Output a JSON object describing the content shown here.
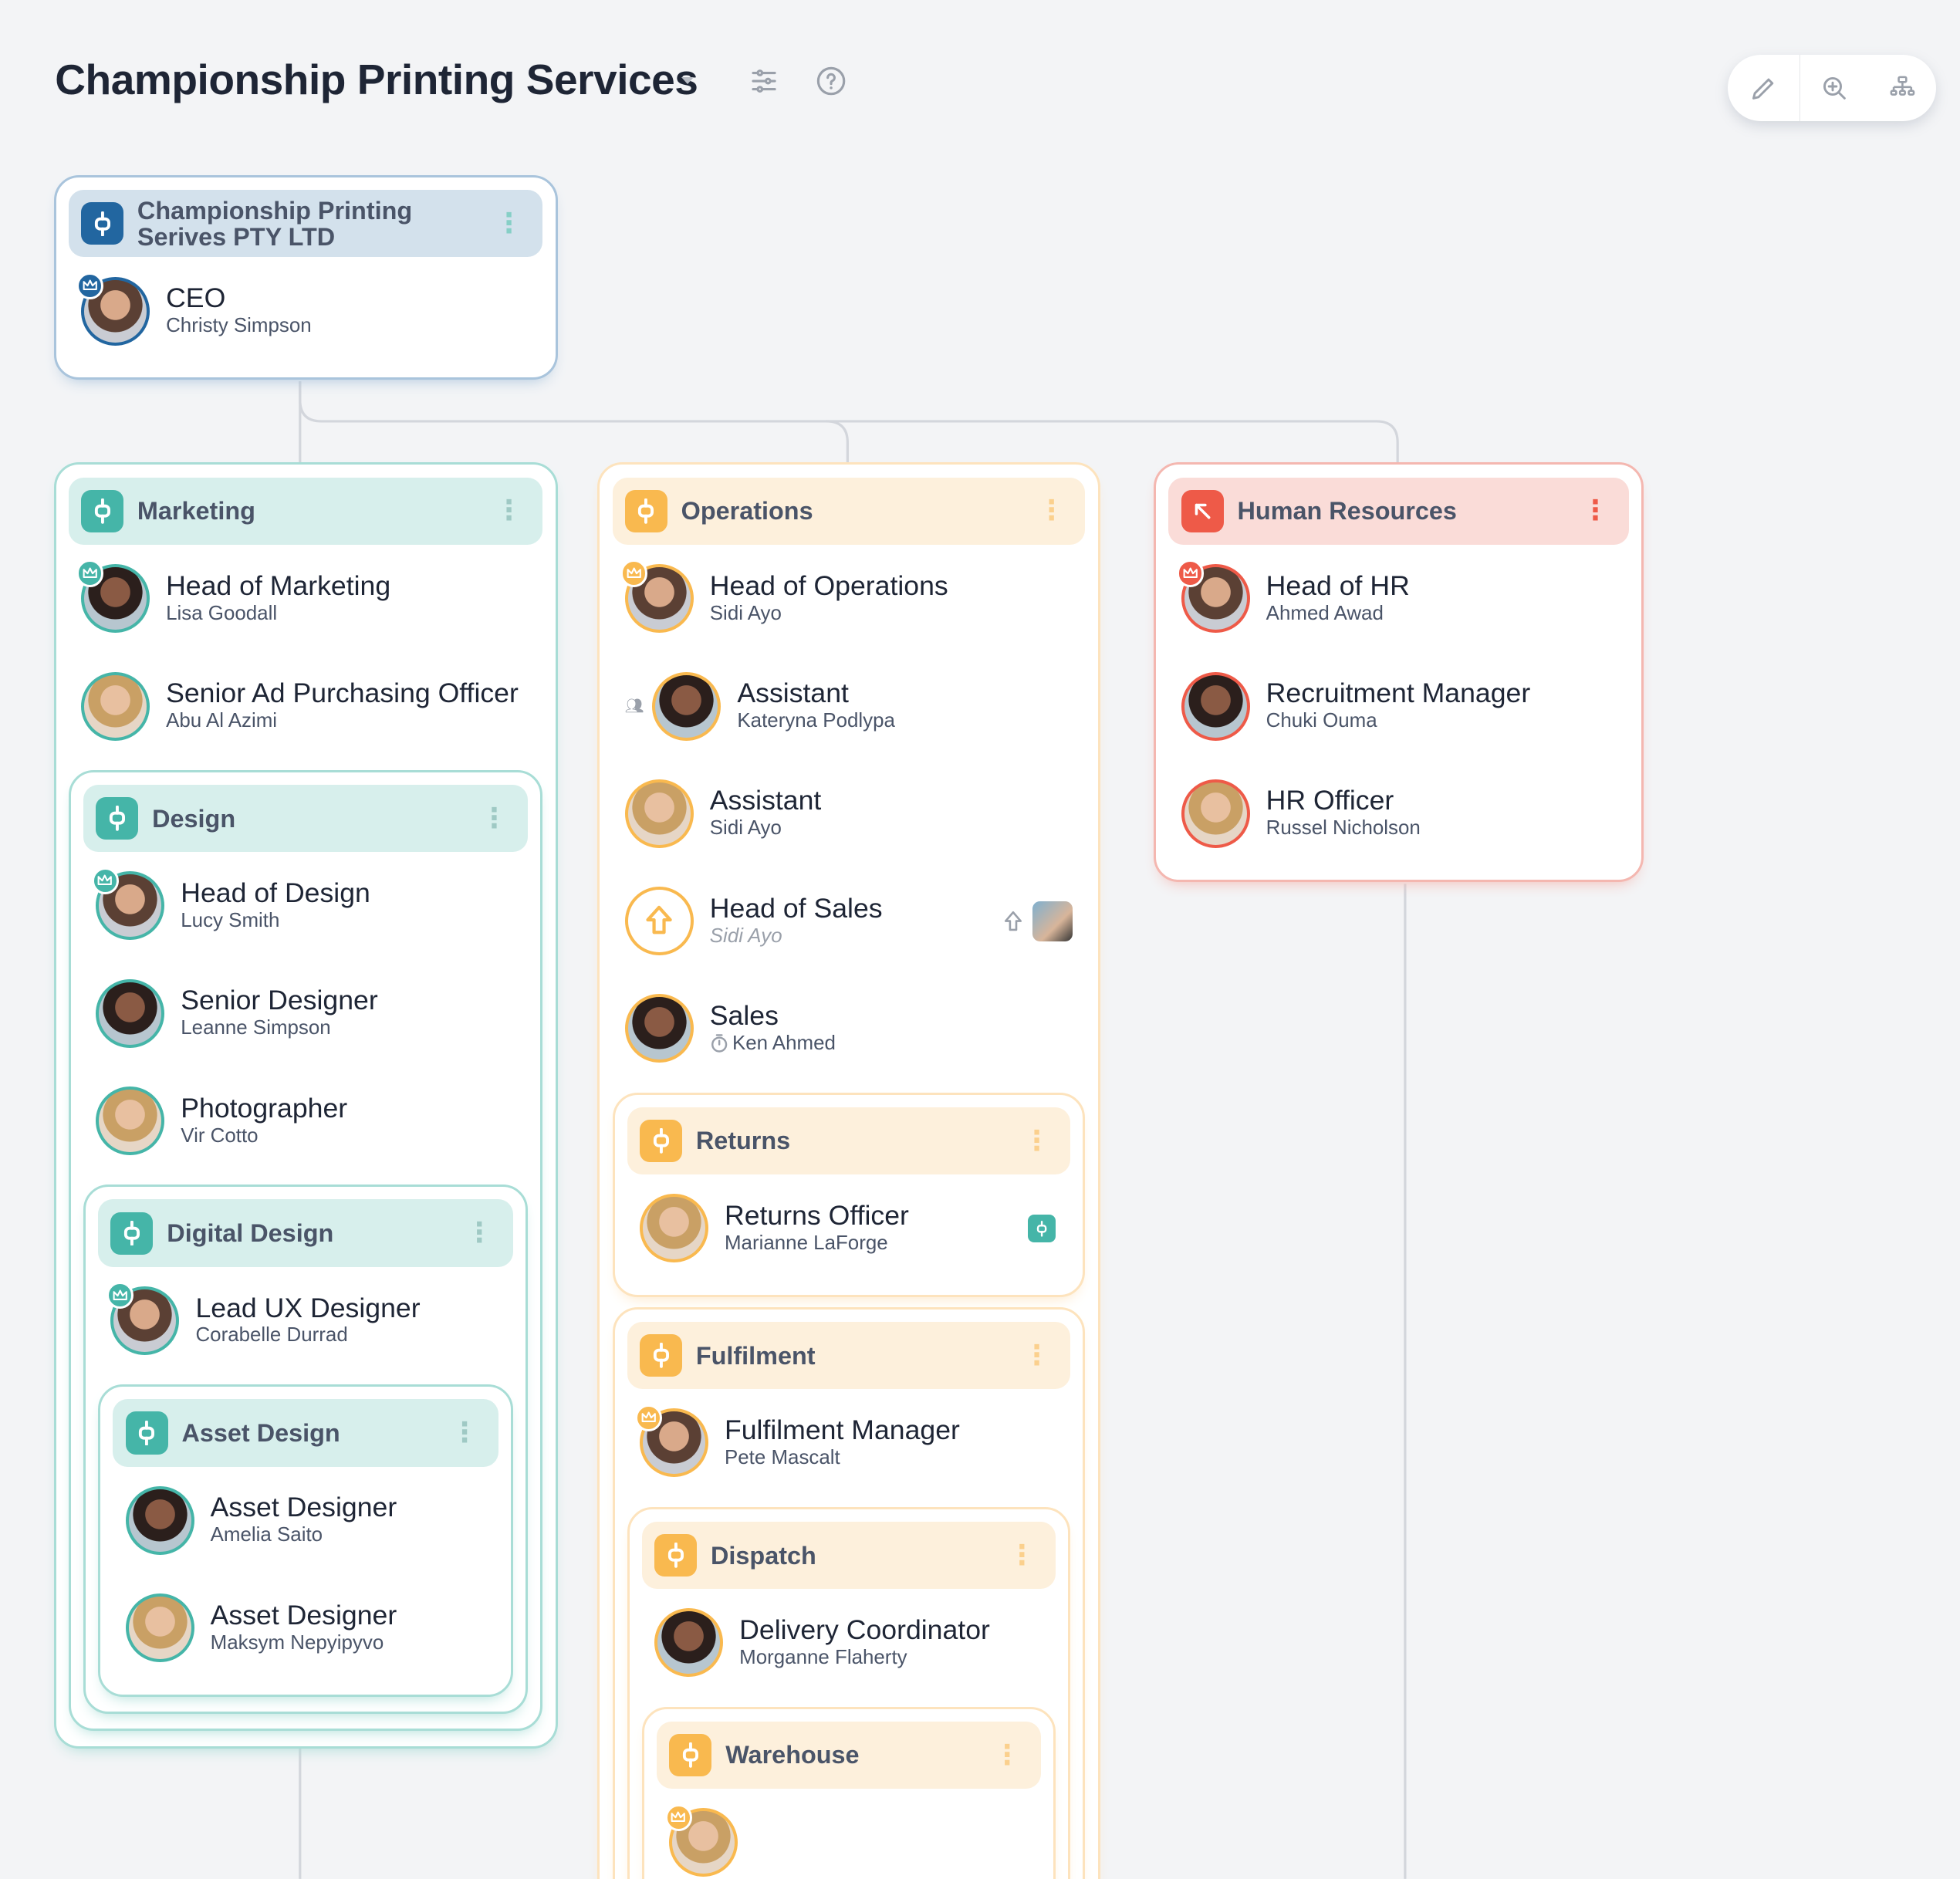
{
  "header": {
    "title": "Championship Printing Services",
    "filter_icon": "sliders-icon",
    "help_icon": "help-circle-icon"
  },
  "toolbar": {
    "items": [
      "pencil-icon",
      "zoom-in-icon",
      "org-chart-icon"
    ]
  },
  "colors": {
    "blue": "#2266a0",
    "teal": "#45b5a8",
    "orange": "#f9b94f",
    "red": "#ee5a48",
    "connector": "#d3d6dc"
  },
  "groups": [
    {
      "title": "Championship Printing Serives PTY LTD",
      "theme": "blue",
      "icon": "group",
      "members": [
        {
          "title": "CEO",
          "name": "Christy Simpson",
          "crown": true
        }
      ],
      "children": []
    },
    {
      "title": "Marketing",
      "theme": "teal",
      "icon": "group",
      "members": [
        {
          "title": "Head of Marketing",
          "name": "Lisa Goodall",
          "crown": true
        },
        {
          "title": "Senior Ad Purchasing Officer",
          "name": "Abu Al Azimi"
        }
      ],
      "children": [
        {
          "title": "Design",
          "theme": "teal",
          "icon": "group",
          "members": [
            {
              "title": "Head of Design",
              "name": "Lucy Smith",
              "crown": true
            },
            {
              "title": "Senior Designer",
              "name": "Leanne Simpson"
            },
            {
              "title": "Photographer",
              "name": "Vir Cotto"
            }
          ],
          "children": [
            {
              "title": "Digital Design",
              "theme": "teal",
              "icon": "group",
              "members": [
                {
                  "title": "Lead UX Designer",
                  "name": "Corabelle Durrad",
                  "crown": true
                }
              ],
              "children": [
                {
                  "title": "Asset Design",
                  "theme": "teal",
                  "icon": "group",
                  "members": [
                    {
                      "title": "Asset Designer",
                      "name": "Amelia Saito"
                    },
                    {
                      "title": "Asset Designer",
                      "name": "Maksym Nepyipyvo"
                    }
                  ],
                  "children": []
                }
              ]
            }
          ]
        }
      ]
    },
    {
      "title": "Operations",
      "theme": "orange",
      "icon": "group",
      "members": [
        {
          "title": "Head of Operations",
          "name": "Sidi Ayo",
          "crown": true
        },
        {
          "title": "Assistant",
          "name": "Kateryna Podlypa",
          "assistant": true
        },
        {
          "title": "Assistant",
          "name": "Sidi Ayo"
        },
        {
          "title": "Head of Sales",
          "name": "Sidi Ayo",
          "vacant": true,
          "right_photo": true
        },
        {
          "title": "Sales",
          "name": "Ken Ahmed",
          "timer": true
        }
      ],
      "children": [
        {
          "title": "Returns",
          "theme": "orange",
          "icon": "group",
          "members": [
            {
              "title": "Returns Officer",
              "name": "Marianne LaForge",
              "right_badge": true
            }
          ],
          "children": []
        },
        {
          "title": "Fulfilment",
          "theme": "orange",
          "icon": "group",
          "members": [
            {
              "title": "Fulfilment Manager",
              "name": "Pete Mascalt",
              "crown": true
            }
          ],
          "children": [
            {
              "title": "Dispatch",
              "theme": "orange",
              "icon": "group",
              "members": [
                {
                  "title": "Delivery Coordinator",
                  "name": "Morganne Flaherty"
                }
              ],
              "children": [
                {
                  "title": "Warehouse",
                  "theme": "orange",
                  "icon": "group",
                  "members": [
                    {
                      "title": "",
                      "name": "",
                      "crown": true
                    }
                  ],
                  "children": []
                }
              ]
            }
          ]
        }
      ]
    },
    {
      "title": "Human Resources",
      "theme": "red",
      "icon": "arrow-up-left",
      "members": [
        {
          "title": "Head of HR",
          "name": "Ahmed Awad",
          "crown": true
        },
        {
          "title": "Recruitment Manager",
          "name": "Chuki Ouma"
        },
        {
          "title": "HR Officer",
          "name": "Russel Nicholson"
        }
      ],
      "children": []
    }
  ]
}
